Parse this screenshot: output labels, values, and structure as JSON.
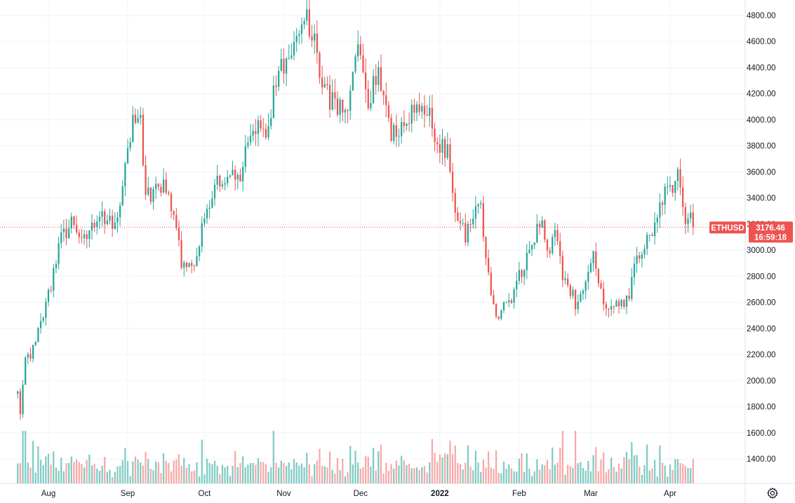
{
  "chart_data": {
    "type": "candlestick",
    "symbol": "ETHUSD",
    "last_price": "3176.46",
    "countdown": "16:59:18",
    "y_axis": {
      "ylim": [
        1240,
        4880
      ],
      "ticks": [
        "1400.00",
        "1600.00",
        "1800.00",
        "2000.00",
        "2200.00",
        "2400.00",
        "2600.00",
        "2800.00",
        "3000.00",
        "3200.00",
        "3400.00",
        "3600.00",
        "3800.00",
        "4000.00",
        "4200.00",
        "4400.00",
        "4600.00",
        "4800.00"
      ]
    },
    "x_axis": {
      "tick_labels": [
        "Aug",
        "Sep",
        "Oct",
        "Nov",
        "Dec",
        "2022",
        "Feb",
        "Mar",
        "Apr"
      ],
      "bold_labels": [
        "2022"
      ]
    },
    "anchors": [
      [
        "2021-07-20",
        1900
      ],
      [
        "2021-07-21",
        1780
      ],
      [
        "2021-07-23",
        2150
      ],
      [
        "2021-07-26",
        2250
      ],
      [
        "2021-07-31",
        2550
      ],
      [
        "2021-08-05",
        3050
      ],
      [
        "2021-08-10",
        3200
      ],
      [
        "2021-08-16",
        3100
      ],
      [
        "2021-08-23",
        3250
      ],
      [
        "2021-08-28",
        3200
      ],
      [
        "2021-09-01",
        3800
      ],
      [
        "2021-09-03",
        4000
      ],
      [
        "2021-09-06",
        3950
      ],
      [
        "2021-09-08",
        3400
      ],
      [
        "2021-09-15",
        3500
      ],
      [
        "2021-09-20",
        3200
      ],
      [
        "2021-09-22",
        2900
      ],
      [
        "2021-09-28",
        2950
      ],
      [
        "2021-10-01",
        3300
      ],
      [
        "2021-10-05",
        3500
      ],
      [
        "2021-10-10",
        3550
      ],
      [
        "2021-10-15",
        3600
      ],
      [
        "2021-10-18",
        3800
      ],
      [
        "2021-10-22",
        4000
      ],
      [
        "2021-10-25",
        3900
      ],
      [
        "2021-10-29",
        4300
      ],
      [
        "2021-11-05",
        4550
      ],
      [
        "2021-11-08",
        4700
      ],
      [
        "2021-11-10",
        4800
      ],
      [
        "2021-11-13",
        4600
      ],
      [
        "2021-11-17",
        4200
      ],
      [
        "2021-11-22",
        4100
      ],
      [
        "2021-11-26",
        4150
      ],
      [
        "2021-11-30",
        4600
      ],
      [
        "2021-12-04",
        4150
      ],
      [
        "2021-12-08",
        4400
      ],
      [
        "2021-12-13",
        3900
      ],
      [
        "2021-12-18",
        3950
      ],
      [
        "2021-12-22",
        4050
      ],
      [
        "2021-12-27",
        4100
      ],
      [
        "2021-12-31",
        3800
      ],
      [
        "2022-01-04",
        3750
      ],
      [
        "2022-01-07",
        3300
      ],
      [
        "2022-01-11",
        3100
      ],
      [
        "2022-01-14",
        3300
      ],
      [
        "2022-01-17",
        3350
      ],
      [
        "2022-01-21",
        2600
      ],
      [
        "2022-01-24",
        2500
      ],
      [
        "2022-01-28",
        2600
      ],
      [
        "2022-02-03",
        2900
      ],
      [
        "2022-02-06",
        3050
      ],
      [
        "2022-02-10",
        3250
      ],
      [
        "2022-02-12",
        2950
      ],
      [
        "2022-02-15",
        3150
      ],
      [
        "2022-02-18",
        2800
      ],
      [
        "2022-02-23",
        2600
      ],
      [
        "2022-02-28",
        2850
      ],
      [
        "2022-03-02",
        2950
      ],
      [
        "2022-03-06",
        2550
      ],
      [
        "2022-03-12",
        2600
      ],
      [
        "2022-03-15",
        2600
      ],
      [
        "2022-03-19",
        2950
      ],
      [
        "2022-03-25",
        3150
      ],
      [
        "2022-03-29",
        3400
      ],
      [
        "2022-04-02",
        3450
      ],
      [
        "2022-04-04",
        3550
      ],
      [
        "2022-04-06",
        3400
      ],
      [
        "2022-04-07",
        3200
      ],
      [
        "2022-04-09",
        3250
      ],
      [
        "2022-04-10",
        3176
      ]
    ],
    "volume_scale_max": 1,
    "colors": {
      "up": "#26a69a",
      "down": "#ef5350",
      "up_volume": "#80cbc4",
      "down_volume": "#f7a9a7",
      "grid": "#f0f3fa",
      "axis_text": "#131722",
      "price_line": "#ef5350"
    }
  },
  "ui": {
    "price_label_symbol": "ETHUSD",
    "settings_icon": "gear-icon"
  }
}
